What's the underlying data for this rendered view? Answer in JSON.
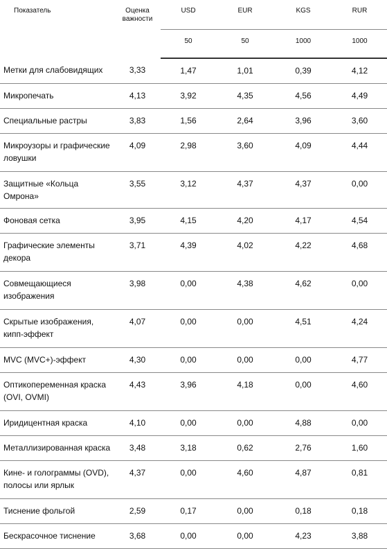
{
  "table": {
    "header": {
      "indicator": "Показатель",
      "importance": "Оценка важности",
      "currencies": [
        "USD",
        "EUR",
        "KGS",
        "RUR"
      ],
      "denominations": [
        "50",
        "50",
        "1000",
        "1000"
      ]
    },
    "rows": [
      {
        "name": "Метки для слабовидящих",
        "importance": "3,33",
        "values": [
          "1,47",
          "1,01",
          "0,39",
          "4,12"
        ],
        "lines": 1
      },
      {
        "name": "Микропечать",
        "importance": "4,13",
        "values": [
          "3,92",
          "4,35",
          "4,56",
          "4,49"
        ],
        "lines": 1
      },
      {
        "name": "Специальные растры",
        "importance": "3,83",
        "values": [
          "1,56",
          "2,64",
          "3,96",
          "3,60"
        ],
        "lines": 1
      },
      {
        "name": "Микроузоры и графические ловушки",
        "importance": "4,09",
        "values": [
          "2,98",
          "3,60",
          "4,09",
          "4,44"
        ],
        "lines": 2
      },
      {
        "name": "Защитные «Кольца Омрона»",
        "importance": "3,55",
        "values": [
          "3,12",
          "4,37",
          "4,37",
          "0,00"
        ],
        "lines": 1
      },
      {
        "name": "Фоновая сетка",
        "importance": "3,95",
        "values": [
          "4,15",
          "4,20",
          "4,17",
          "4,54"
        ],
        "lines": 1
      },
      {
        "name": "Графические элементы декора",
        "importance": "3,71",
        "values": [
          "4,39",
          "4,02",
          "4,22",
          "4,68"
        ],
        "lines": 2
      },
      {
        "name": "Совмещающиеся изображения",
        "importance": "3,98",
        "values": [
          "0,00",
          "4,38",
          "4,62",
          "0,00"
        ],
        "lines": 2
      },
      {
        "name": "Скрытые изображения, кипп-эффект",
        "importance": "4,07",
        "values": [
          "0,00",
          "0,00",
          "4,51",
          "4,24"
        ],
        "lines": 2
      },
      {
        "name": "MVC (MVC+)-эффект",
        "importance": "4,30",
        "values": [
          "0,00",
          "0,00",
          "0,00",
          "4,77"
        ],
        "lines": 1
      },
      {
        "name": "Оптикопеременная краска (OVI, OVMI)",
        "importance": "4,43",
        "values": [
          "3,96",
          "4,18",
          "0,00",
          "4,60"
        ],
        "lines": 2
      },
      {
        "name": "Иридицентная краска",
        "importance": "4,10",
        "values": [
          "0,00",
          "0,00",
          "4,88",
          "0,00"
        ],
        "lines": 1
      },
      {
        "name": "Металлизированная краска",
        "importance": "3,48",
        "values": [
          "3,18",
          "0,62",
          "2,76",
          "1,60"
        ],
        "lines": 1
      },
      {
        "name": "Кине- и голограммы (OVD), полосы или ярлык",
        "importance": "4,37",
        "values": [
          "0,00",
          "4,60",
          "4,87",
          "0,81"
        ],
        "lines": 2
      },
      {
        "name": "Тиснение фольгой",
        "importance": "2,59",
        "values": [
          "0,17",
          "0,00",
          "0,18",
          "0,18"
        ],
        "lines": 1
      },
      {
        "name": "Бескрасочное тиснение",
        "importance": "3,68",
        "values": [
          "0,00",
          "0,00",
          "4,23",
          "3,88"
        ],
        "lines": 1
      }
    ]
  }
}
